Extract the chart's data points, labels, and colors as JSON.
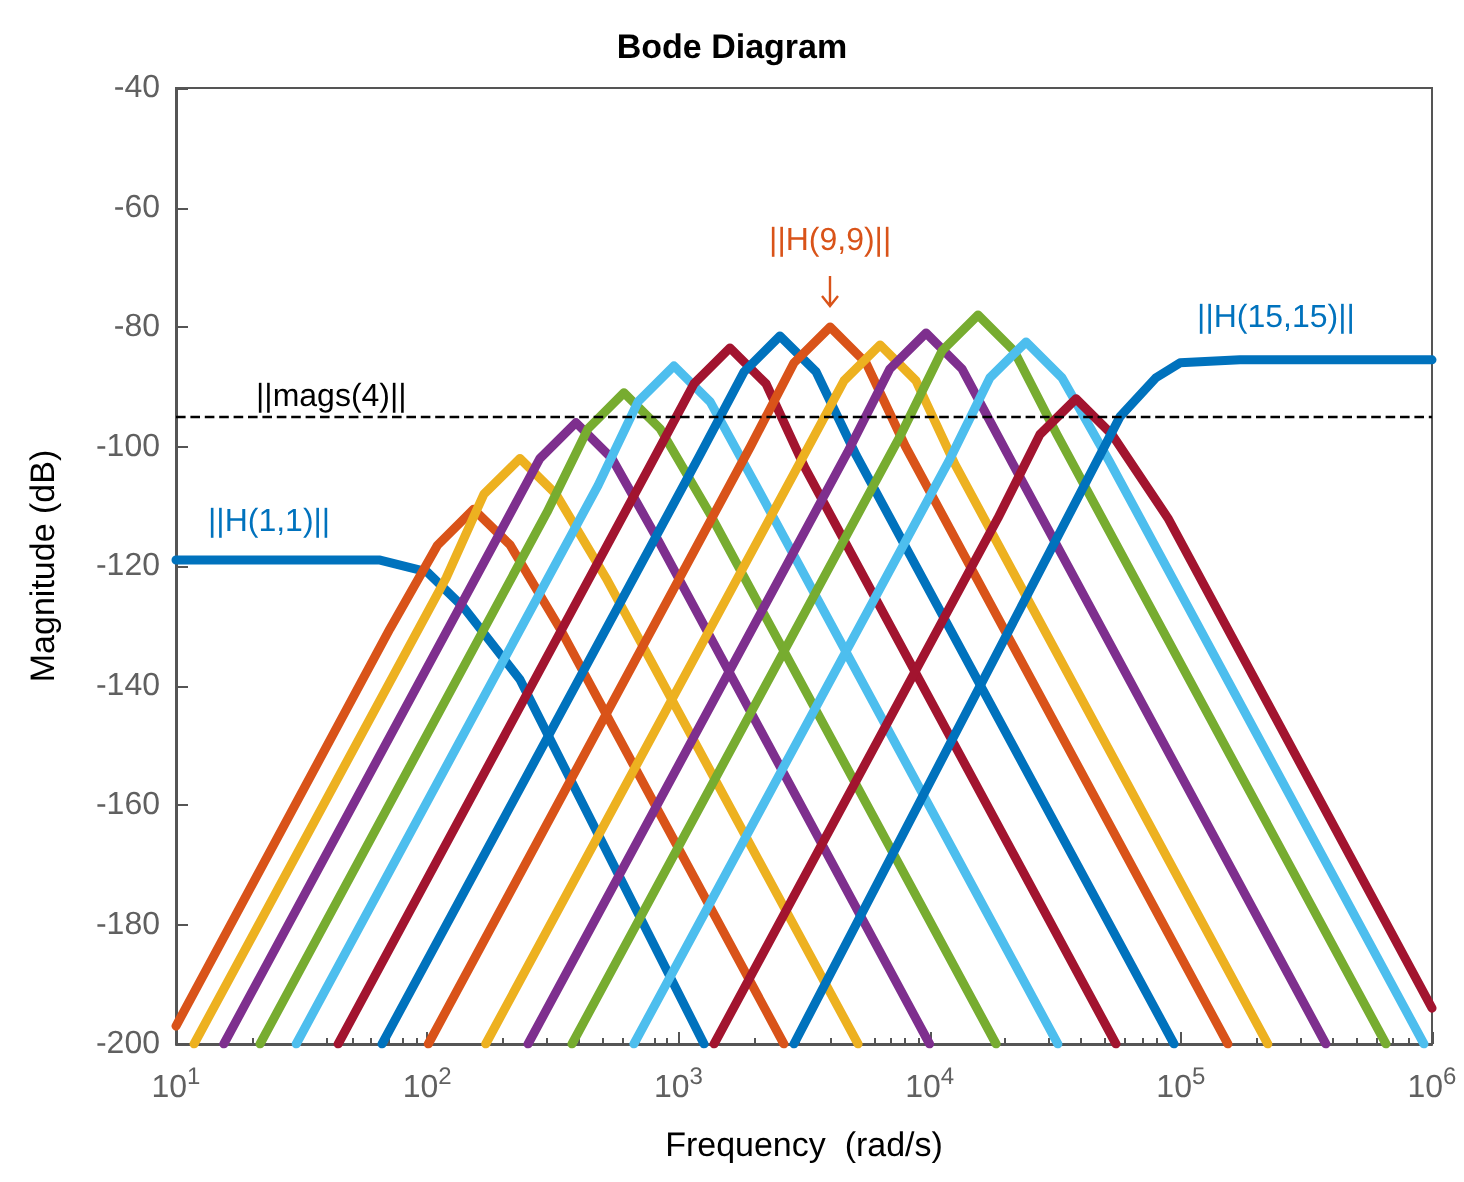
{
  "chart_data": {
    "type": "line",
    "title": "Bode Diagram",
    "xlabel": "Frequency  (rad/s)",
    "ylabel": "Magnitude (dB)",
    "log": "x",
    "grid": false,
    "legend": false,
    "marker": "none",
    "line_style": "solid",
    "xlim": [
      10,
      1000000
    ],
    "xticks": [
      {
        "value": 10,
        "label": "10$^{1}$"
      },
      {
        "value": 100,
        "label": "10$^{2}$"
      },
      {
        "value": 1000,
        "label": "10$^{3}$"
      },
      {
        "value": 10000,
        "label": "10$^{4}$"
      },
      {
        "value": 100000,
        "label": "10$^{5}$"
      },
      {
        "value": 1000000,
        "label": "10$^{6}$"
      }
    ],
    "ylim": [
      -200,
      -40
    ],
    "yticks": [
      -200,
      -180,
      -160,
      -140,
      -120,
      -100,
      -80,
      -60,
      -40
    ],
    "ref_lines": [
      {
        "axis": "y",
        "value": -95,
        "label": "||mags(4)||",
        "color": "#000000",
        "line_style": "dashed"
      }
    ],
    "series": [
      {
        "name": "||H(1,1)||",
        "color": "#0072bd",
        "x": [
          10,
          64.9,
          100,
          140,
          234,
          1265
        ],
        "values": [
          -119,
          -119,
          -121,
          -127,
          -139,
          -200
        ]
      },
      {
        "color": "#d95319",
        "x": [
          10,
          71.1,
          110,
          153,
          214,
          338,
          2630
        ],
        "values": [
          -197,
          -130.5,
          -116.5,
          -110.5,
          -116.5,
          -130.5,
          -200
        ]
      },
      {
        "color": "#edb120",
        "x": [
          11.8,
          119,
          168,
          234,
          326,
          515,
          5190
        ],
        "values": [
          -200,
          -122,
          -108,
          -102,
          -108,
          -122,
          -200
        ]
      },
      {
        "color": "#7e2f8e",
        "x": [
          15.5,
          186,
          281,
          391,
          544,
          838,
          10000
        ],
        "values": [
          -200,
          -116,
          -102,
          -96,
          -102,
          -116,
          -200
        ]
      },
      {
        "color": "#77ac30",
        "x": [
          21.6,
          300,
          437,
          607,
          845,
          1324,
          18400
        ],
        "values": [
          -200,
          -111,
          -97,
          -91,
          -97,
          -111,
          -200
        ]
      },
      {
        "color": "#4dbeee",
        "x": [
          30.1,
          479,
          691,
          960,
          1337,
          2037,
          32400
        ],
        "values": [
          -200,
          -106.5,
          -92.5,
          -86.5,
          -92.5,
          -106.5,
          -200
        ]
      },
      {
        "color": "#a2142f",
        "x": [
          44.2,
          765,
          1153,
          1604,
          2233,
          3184,
          55200
        ],
        "values": [
          -200,
          -103.5,
          -89.5,
          -83.5,
          -89.5,
          -103.5,
          -200
        ]
      },
      {
        "color": "#0072bd",
        "x": [
          66.1,
          1216,
          1824,
          2536,
          3532,
          5105,
          94000
        ],
        "values": [
          -200,
          -101.5,
          -87.5,
          -81.5,
          -87.5,
          -101.5,
          -200
        ]
      },
      {
        "name": "||H(9,9)||",
        "color": "#d95319",
        "x": [
          101,
          1937,
          2884,
          4018,
          5585,
          8017,
          154000
        ],
        "values": [
          -200,
          -100,
          -86,
          -80,
          -86,
          -100,
          -200
        ]
      },
      {
        "color": "#edb120",
        "x": [
          171,
          3020,
          4560,
          6353,
          8831,
          12620,
          222000
        ],
        "values": [
          -200,
          -103,
          -89,
          -83,
          -89,
          -103,
          -200
        ]
      },
      {
        "color": "#7e2f8e",
        "x": [
          252,
          4710,
          6950,
          9680,
          13460,
          20270,
          378000
        ],
        "values": [
          -200,
          -101,
          -87,
          -81,
          -87,
          -101,
          -200
        ]
      },
      {
        "color": "#77ac30",
        "x": [
          377,
          7690,
          11200,
          15590,
          21680,
          32140,
          656000
        ],
        "values": [
          -200,
          -98,
          -84,
          -78,
          -84,
          -98,
          -200
        ]
      },
      {
        "color": "#4dbeee",
        "x": [
          665,
          11910,
          17380,
          24210,
          33650,
          52000,
          929000
        ],
        "values": [
          -200,
          -102.5,
          -88.5,
          -82.5,
          -88.5,
          -102.5,
          -200
        ]
      },
      {
        "color": "#a2142f",
        "x": [
          1387,
          18700,
          27480,
          38280,
          53220,
          88900,
          1000000
        ],
        "values": [
          -200,
          -112,
          -98,
          -92,
          -98,
          -112,
          -194
        ]
      },
      {
        "name": "||H(15,15)||",
        "color": "#0072bd",
        "x": [
          2884,
          57300,
          79600,
          99300,
          172000,
          1000000
        ],
        "values": [
          -200,
          -95,
          -88.5,
          -86,
          -85.5,
          -85.5
        ]
      }
    ]
  }
}
